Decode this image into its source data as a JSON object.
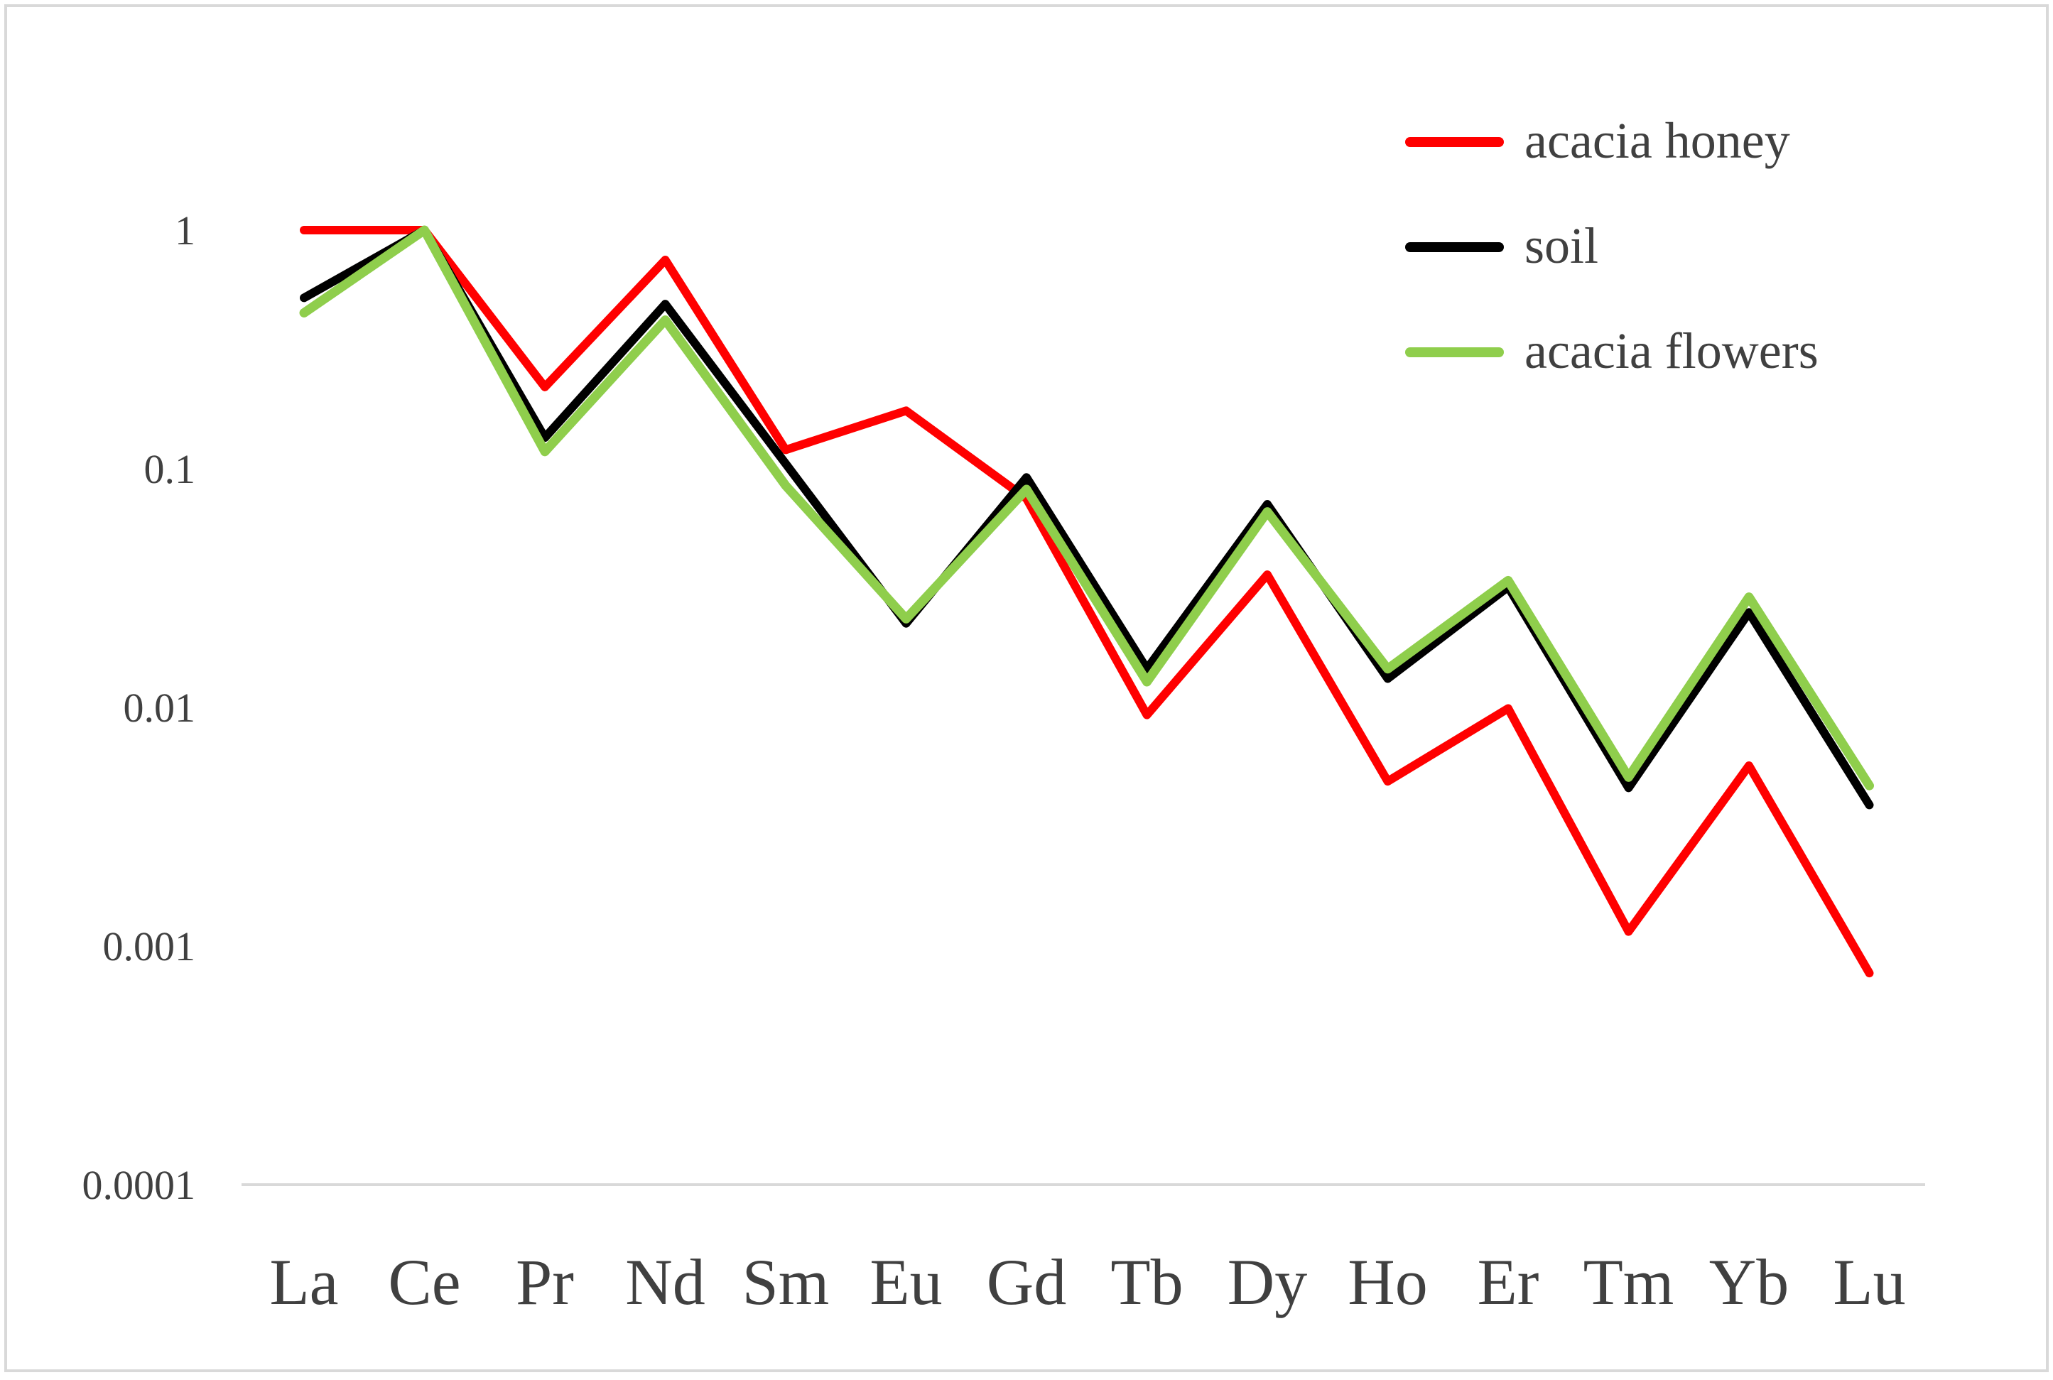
{
  "chart_data": {
    "type": "line",
    "title": "",
    "xlabel": "",
    "ylabel": "",
    "y_scale": "log",
    "ylim": [
      0.0001,
      1
    ],
    "y_ticks": [
      {
        "value": 1,
        "label": "1"
      },
      {
        "value": 0.1,
        "label": "0.1"
      },
      {
        "value": 0.01,
        "label": "0.01"
      },
      {
        "value": 0.001,
        "label": "0.001"
      },
      {
        "value": 0.0001,
        "label": "0.0001"
      }
    ],
    "grid": false,
    "legend_position": "top-right",
    "categories": [
      "La",
      "Ce",
      "Pr",
      "Nd",
      "Sm",
      "Eu",
      "Gd",
      "Tb",
      "Dy",
      "Ho",
      "Er",
      "Tm",
      "Yb",
      "Lu"
    ],
    "series": [
      {
        "name": "acacia honey",
        "color": "#ff0000",
        "values": [
          1.0,
          1.0,
          0.22,
          0.75,
          0.12,
          0.175,
          0.075,
          0.0093,
          0.036,
          0.0049,
          0.0099,
          0.00115,
          0.0057,
          0.00077
        ]
      },
      {
        "name": "soil",
        "color": "#000000",
        "values": [
          0.52,
          1.0,
          0.135,
          0.49,
          0.105,
          0.0225,
          0.092,
          0.0145,
          0.071,
          0.0132,
          0.032,
          0.0046,
          0.025,
          0.0039
        ]
      },
      {
        "name": "acacia flowers",
        "color": "#8fce4c",
        "values": [
          0.45,
          1.0,
          0.118,
          0.42,
          0.085,
          0.0235,
          0.082,
          0.0128,
          0.066,
          0.0145,
          0.034,
          0.0051,
          0.029,
          0.0047
        ]
      }
    ]
  }
}
